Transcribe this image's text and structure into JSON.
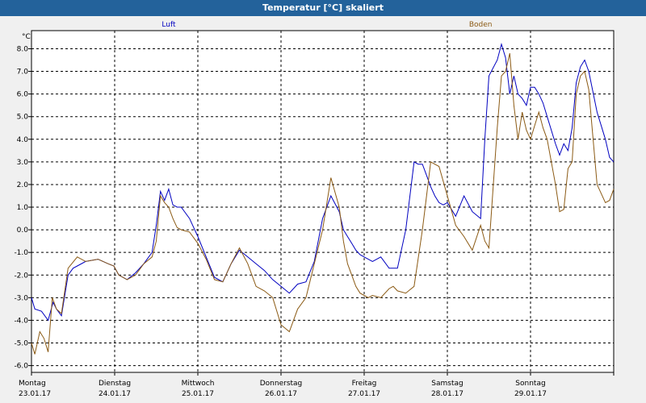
{
  "chart_data": {
    "type": "line",
    "title": "Temperatur [°C] skaliert",
    "ylabel": "°C",
    "ylim": [
      -6.3,
      8.8
    ],
    "yticks": [
      "8.0",
      "7.0",
      "6.0",
      "5.0",
      "4.0",
      "3.0",
      "2.0",
      "1.0",
      "0.0",
      "-1.0",
      "-2.0",
      "-3.0",
      "-4.0",
      "-5.0",
      "-6.0"
    ],
    "xlim": [
      0,
      7.0
    ],
    "x_days": [
      {
        "day": "Montag",
        "date": "23.01.17"
      },
      {
        "day": "Dienstag",
        "date": "24.01.17"
      },
      {
        "day": "Mittwoch",
        "date": "25.01.17"
      },
      {
        "day": "Donnerstag",
        "date": "26.01.17"
      },
      {
        "day": "Freitag",
        "date": "27.01.17"
      },
      {
        "day": "Samstag",
        "date": "28.01.17"
      },
      {
        "day": "Sonntag",
        "date": "29.01.17"
      }
    ],
    "series": [
      {
        "name": "Luft",
        "color": "#0000c0",
        "x": [
          0,
          0.04,
          0.12,
          0.2,
          0.26,
          0.3,
          0.36,
          0.44,
          0.5,
          0.55,
          0.65,
          0.8,
          0.92,
          0.99,
          1.05,
          1.15,
          1.25,
          1.35,
          1.45,
          1.5,
          1.55,
          1.6,
          1.65,
          1.7,
          1.75,
          1.8,
          1.9,
          2.0,
          2.1,
          2.2,
          2.3,
          2.4,
          2.5,
          2.6,
          2.7,
          2.8,
          2.9,
          3.0,
          3.1,
          3.2,
          3.3,
          3.4,
          3.5,
          3.6,
          3.7,
          3.75,
          3.8,
          3.85,
          3.9,
          3.95,
          4.0,
          4.1,
          4.2,
          4.3,
          4.4,
          4.5,
          4.6,
          4.65,
          4.7,
          4.75,
          4.8,
          4.85,
          4.9,
          4.95,
          5.0,
          5.1,
          5.2,
          5.3,
          5.4,
          5.45,
          5.5,
          5.6,
          5.65,
          5.7,
          5.75,
          5.8,
          5.85,
          5.9,
          5.95,
          6.0,
          6.05,
          6.1,
          6.15,
          6.2,
          6.3,
          6.35,
          6.4,
          6.45,
          6.5,
          6.55,
          6.6,
          6.65,
          6.7,
          6.8,
          6.9,
          6.95,
          7.0
        ],
        "y": [
          -3.0,
          -3.5,
          -3.6,
          -4.0,
          -3.2,
          -3.5,
          -3.8,
          -2.0,
          -1.7,
          -1.6,
          -1.4,
          -1.3,
          -1.5,
          -1.6,
          -2.0,
          -2.2,
          -1.9,
          -1.5,
          -1.0,
          0.2,
          1.7,
          1.3,
          1.8,
          1.1,
          1.0,
          1.0,
          0.5,
          -0.3,
          -1.2,
          -2.1,
          -2.3,
          -1.5,
          -0.9,
          -1.2,
          -1.5,
          -1.8,
          -2.2,
          -2.5,
          -2.8,
          -2.4,
          -2.3,
          -1.4,
          0.5,
          1.5,
          0.8,
          0.0,
          -0.3,
          -0.6,
          -0.9,
          -1.1,
          -1.2,
          -1.4,
          -1.2,
          -1.7,
          -1.7,
          0.0,
          3.0,
          2.9,
          2.9,
          2.4,
          1.9,
          1.5,
          1.2,
          1.1,
          1.2,
          0.6,
          1.5,
          0.8,
          0.5,
          4.0,
          6.8,
          7.5,
          8.2,
          7.6,
          6.0,
          6.8,
          6.0,
          5.8,
          5.5,
          6.3,
          6.3,
          6.0,
          5.6,
          5.0,
          3.8,
          3.3,
          3.8,
          3.5,
          4.5,
          6.5,
          7.2,
          7.5,
          7.0,
          5.2,
          4.0,
          3.2,
          3.0
        ]
      },
      {
        "name": "Boden",
        "color": "#8b5a14",
        "x": [
          0,
          0.04,
          0.1,
          0.15,
          0.2,
          0.25,
          0.3,
          0.36,
          0.44,
          0.55,
          0.65,
          0.8,
          0.92,
          0.99,
          1.05,
          1.15,
          1.25,
          1.35,
          1.45,
          1.5,
          1.55,
          1.6,
          1.65,
          1.7,
          1.75,
          1.8,
          1.9,
          2.0,
          2.1,
          2.2,
          2.3,
          2.4,
          2.5,
          2.6,
          2.7,
          2.8,
          2.9,
          3.0,
          3.1,
          3.2,
          3.3,
          3.4,
          3.5,
          3.6,
          3.7,
          3.75,
          3.8,
          3.85,
          3.9,
          3.95,
          4.0,
          4.05,
          4.1,
          4.2,
          4.3,
          4.35,
          4.4,
          4.5,
          4.6,
          4.7,
          4.8,
          4.9,
          5.0,
          5.1,
          5.2,
          5.3,
          5.4,
          5.45,
          5.5,
          5.6,
          5.65,
          5.7,
          5.75,
          5.8,
          5.85,
          5.9,
          5.95,
          6.0,
          6.05,
          6.1,
          6.15,
          6.2,
          6.3,
          6.35,
          6.4,
          6.45,
          6.5,
          6.55,
          6.6,
          6.65,
          6.7,
          6.8,
          6.9,
          6.95,
          7.0
        ],
        "y": [
          -5.0,
          -5.5,
          -4.5,
          -4.8,
          -5.4,
          -3.0,
          -3.5,
          -3.7,
          -1.7,
          -1.2,
          -1.4,
          -1.3,
          -1.5,
          -1.6,
          -2.0,
          -2.2,
          -2.0,
          -1.5,
          -1.2,
          -0.5,
          1.5,
          1.2,
          1.0,
          0.5,
          0.1,
          0.0,
          -0.1,
          -0.6,
          -1.3,
          -2.2,
          -2.3,
          -1.5,
          -0.8,
          -1.5,
          -2.5,
          -2.7,
          -3.0,
          -4.2,
          -4.5,
          -3.5,
          -3.0,
          -1.5,
          0.0,
          2.3,
          1.0,
          -0.5,
          -1.5,
          -2.0,
          -2.5,
          -2.8,
          -2.9,
          -3.0,
          -2.9,
          -3.0,
          -2.6,
          -2.5,
          -2.7,
          -2.8,
          -2.5,
          0.0,
          3.0,
          2.8,
          1.5,
          0.2,
          -0.3,
          -0.9,
          0.2,
          -0.5,
          -0.8,
          4.5,
          6.8,
          7.0,
          7.8,
          5.5,
          4.0,
          5.2,
          4.4,
          4.0,
          4.6,
          5.2,
          4.5,
          4.0,
          2.0,
          0.8,
          0.9,
          2.7,
          3.0,
          6.0,
          6.8,
          7.0,
          6.2,
          2.0,
          1.2,
          1.3,
          1.8
        ]
      }
    ]
  }
}
